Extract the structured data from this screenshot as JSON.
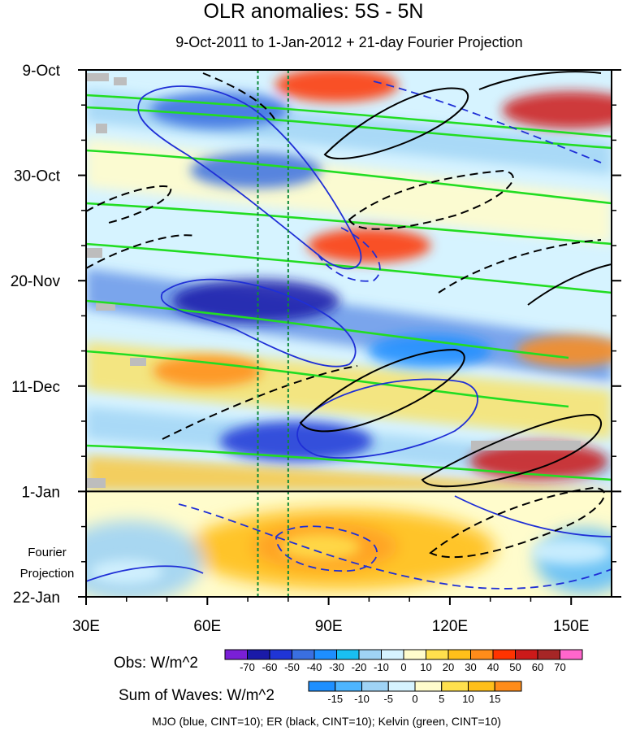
{
  "chart_data": {
    "type": "heatmap",
    "title": "OLR anomalies: 5S - 5N",
    "subtitle": "9-Oct-2011 to 1-Jan-2012 + 21-day Fourier Projection",
    "x_axis": {
      "range": [
        30,
        160
      ],
      "ticks": [
        {
          "value": 30,
          "label": "30E"
        },
        {
          "value": 60,
          "label": "60E"
        },
        {
          "value": 90,
          "label": "90E"
        },
        {
          "value": 120,
          "label": "120E"
        },
        {
          "value": 150,
          "label": "150E"
        }
      ]
    },
    "y_axis": {
      "range_days": [
        0,
        105
      ],
      "direction": "time increases downward",
      "ticks": [
        {
          "day": 0,
          "label": "9-Oct"
        },
        {
          "day": 21,
          "label": "30-Oct"
        },
        {
          "day": 42,
          "label": "20-Nov"
        },
        {
          "day": 63,
          "label": "11-Dec"
        },
        {
          "day": 84,
          "label": "1-Jan"
        },
        {
          "day": 105,
          "label": "22-Jan"
        }
      ],
      "forecast_label": [
        "Fourier",
        "Projection"
      ],
      "forecast_start_day": 84
    },
    "reference_longitudes": [
      72.5,
      80
    ],
    "obs_colorbar": {
      "label": "Obs: W/m^2",
      "levels": [
        "-70",
        "-60",
        "-50",
        "-40",
        "-30",
        "-20",
        "-10",
        "0",
        "10",
        "20",
        "30",
        "40",
        "50",
        "60",
        "70"
      ],
      "colors": [
        "#7a1fd6",
        "#1a1aa8",
        "#1f35d6",
        "#3a6fe0",
        "#1e8fff",
        "#19bff2",
        "#9fd3f5",
        "#d6f3ff",
        "#fffccc",
        "#ffe04d",
        "#ffbf1a",
        "#ff8c1a",
        "#ff3300",
        "#cc1a1a",
        "#a62626",
        "#ff66cc"
      ]
    },
    "waves_colorbar": {
      "label": "Sum of Waves: W/m^2",
      "levels": [
        "-15",
        "-10",
        "-5",
        "0",
        "5",
        "10",
        "15"
      ],
      "colors": [
        "#1e8fff",
        "#4db5ff",
        "#9fd3f5",
        "#d6f3ff",
        "#fffccc",
        "#ffe04d",
        "#ffbf1a",
        "#ff8c1a"
      ]
    },
    "legend_note": "MJO (blue, CINT=10); ER (black, CINT=10); Kelvin (green, CINT=10)",
    "series": [
      {
        "name": "MJO",
        "color": "#1f2fd6"
      },
      {
        "name": "ER",
        "color": "#000000"
      },
      {
        "name": "Kelvin",
        "color": "#22dd22"
      }
    ],
    "anomaly_centers": [
      {
        "lon": 63,
        "day": 8,
        "value": -50
      },
      {
        "lon": 72,
        "day": 20,
        "value": -45
      },
      {
        "lon": 92,
        "day": 3,
        "value": 40
      },
      {
        "lon": 150,
        "day": 8,
        "value": 50
      },
      {
        "lon": 100,
        "day": 35,
        "value": 40
      },
      {
        "lon": 72,
        "day": 46,
        "value": -70
      },
      {
        "lon": 115,
        "day": 56,
        "value": -40
      },
      {
        "lon": 60,
        "day": 60,
        "value": 30
      },
      {
        "lon": 82,
        "day": 74,
        "value": -60
      },
      {
        "lon": 142,
        "day": 78,
        "value": 50
      },
      {
        "lon": 150,
        "day": 56,
        "value": 30
      },
      {
        "lon": 88,
        "day": 95,
        "value": 10
      },
      {
        "lon": 40,
        "day": 100,
        "value": -5
      },
      {
        "lon": 150,
        "day": 96,
        "value": -10
      }
    ]
  }
}
